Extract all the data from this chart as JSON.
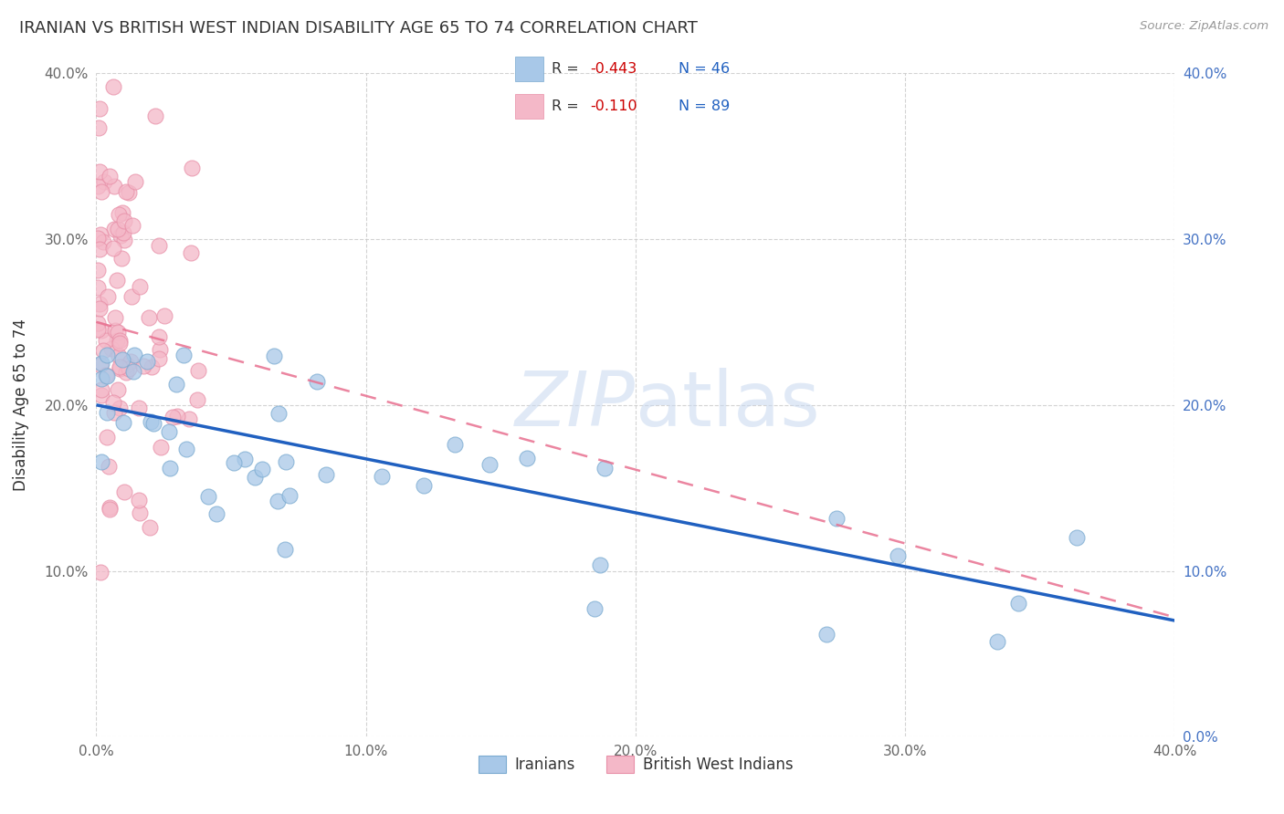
{
  "title": "IRANIAN VS BRITISH WEST INDIAN DISABILITY AGE 65 TO 74 CORRELATION CHART",
  "source": "Source: ZipAtlas.com",
  "ylabel": "Disability Age 65 to 74",
  "xlim": [
    0.0,
    0.4
  ],
  "ylim": [
    0.0,
    0.4
  ],
  "x_ticks": [
    0.0,
    0.1,
    0.2,
    0.3,
    0.4
  ],
  "y_ticks": [
    0.0,
    0.1,
    0.2,
    0.3,
    0.4
  ],
  "x_tick_labels": [
    "0.0%",
    "10.0%",
    "20.0%",
    "30.0%",
    "40.0%"
  ],
  "y_tick_labels_left": [
    "",
    "10.0%",
    "20.0%",
    "30.0%",
    "40.0%"
  ],
  "y_tick_labels_right": [
    "0.0%",
    "10.0%",
    "20.0%",
    "30.0%",
    "40.0%"
  ],
  "iranians_color": "#a8c8e8",
  "iranians_edge_color": "#7aaad0",
  "bwi_color": "#f4b8c8",
  "bwi_edge_color": "#e890a8",
  "iranians_line_color": "#2060c0",
  "bwi_line_color": "#e87090",
  "watermark_color": "#c8d8f0",
  "background_color": "#ffffff",
  "grid_color": "#c8c8c8",
  "R_iran": "-0.443",
  "N_iran": "46",
  "R_bwi": "-0.110",
  "N_bwi": "89",
  "legend_R_color": "#cc0000",
  "legend_N_color": "#2060c0",
  "iran_line_y0": 0.2,
  "iran_line_y1": 0.07,
  "bwi_line_y0": 0.25,
  "bwi_line_y1": 0.072
}
